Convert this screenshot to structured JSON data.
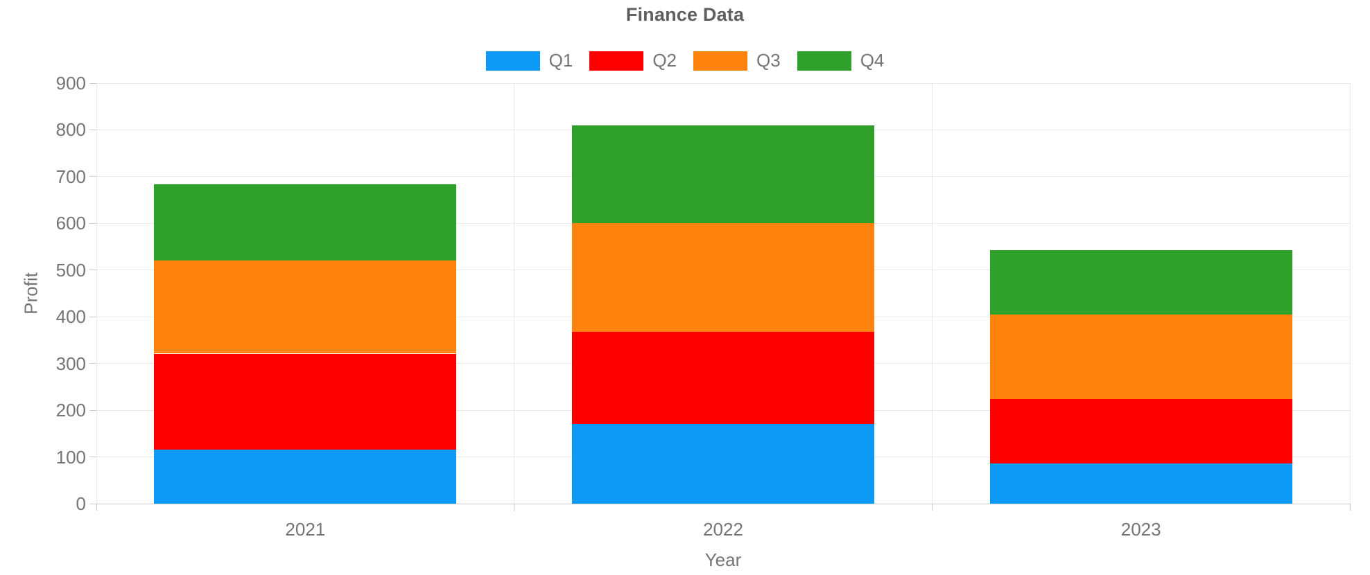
{
  "chart_data": {
    "type": "bar",
    "stacked": true,
    "title": "Finance Data",
    "xlabel": "Year",
    "ylabel": "Profit",
    "categories": [
      "2021",
      "2022",
      "2023"
    ],
    "series": [
      {
        "name": "Q1",
        "color": "#0d99f6",
        "values": [
          115,
          170,
          86
        ]
      },
      {
        "name": "Q2",
        "color": "#fe0000",
        "values": [
          206,
          198,
          138
        ]
      },
      {
        "name": "Q3",
        "color": "#fd820e",
        "values": [
          199,
          232,
          181
        ]
      },
      {
        "name": "Q4",
        "color": "#2fa12b",
        "values": [
          163,
          210,
          137
        ]
      }
    ],
    "stack_totals": [
      683,
      810,
      542
    ],
    "ylim": [
      0,
      900
    ],
    "y_ticks": [
      0,
      100,
      200,
      300,
      400,
      500,
      600,
      700,
      800,
      900
    ],
    "grid": true,
    "legend_position": "top"
  },
  "colors": {
    "grid": "#e9e9e9",
    "axis_line": "#c6c6c6",
    "tick_text": "#757575",
    "title_text": "#5f5f5f"
  }
}
